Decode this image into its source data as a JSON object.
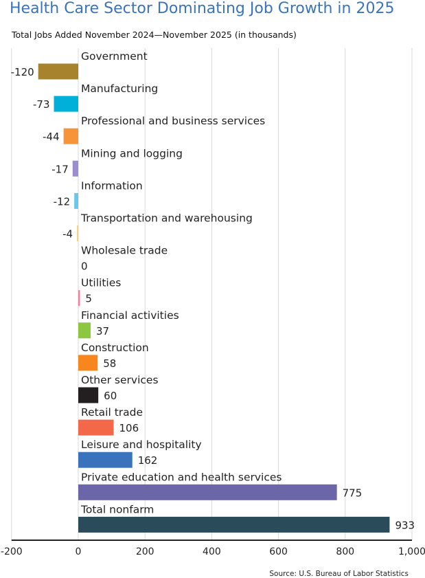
{
  "chart_data": {
    "type": "bar",
    "orientation": "horizontal",
    "title": "Health Care Sector Dominating Job Growth in 2025",
    "subtitle": "Total Jobs Added November 2024—November 2025 (in thousands)",
    "source": "Source: U.S. Bureau of Labor Statistics",
    "categories": [
      "Government",
      "Manufacturing",
      "Professional and business services",
      "Mining and logging",
      "Information",
      "Transportation and warehousing",
      "Wholesale trade",
      "Utilities",
      "Financial activities",
      "Construction",
      "Other services",
      "Retail trade",
      "Leisure and hospitality",
      "Private education and health services",
      "Total nonfarm"
    ],
    "values": [
      -120,
      -73,
      -44,
      -17,
      -12,
      -4,
      0,
      5,
      37,
      58,
      60,
      106,
      162,
      775,
      933
    ],
    "labels": [
      "-120",
      "-73",
      "-44",
      "-17",
      "-12",
      "-4",
      "0",
      "5",
      "37",
      "58",
      "60",
      "106",
      "162",
      "775",
      "933"
    ],
    "colors": [
      "#a8832e",
      "#00b0d8",
      "#f7943a",
      "#9b8fcb",
      "#6cc5ea",
      "#f2d27a",
      "#cccccc",
      "#f47c98",
      "#8dc63f",
      "#f7861e",
      "#231f20",
      "#f26849",
      "#3a73bc",
      "#6b66a8",
      "#2a4b5a"
    ],
    "xlim": [
      -200,
      1000
    ],
    "xticks": [
      -200,
      0,
      200,
      400,
      600,
      800,
      1000
    ],
    "xtick_labels": [
      "-200",
      "0",
      "200",
      "400",
      "600",
      "800",
      "1,000"
    ],
    "grid": true
  }
}
